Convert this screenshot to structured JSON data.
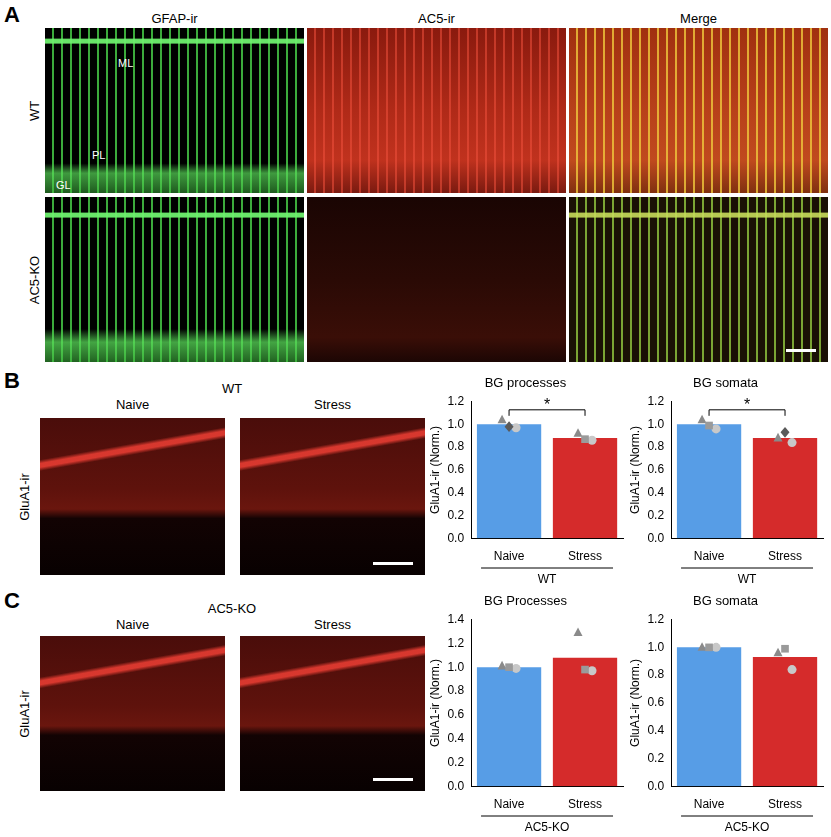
{
  "figure": {
    "panel_a": {
      "label": "A",
      "columns": [
        "GFAP-ir",
        "AC5-ir",
        "Merge"
      ],
      "rows": [
        "WT",
        "AC5-KO"
      ],
      "layer_labels": [
        "ML",
        "PL",
        "GL"
      ]
    },
    "panel_b": {
      "label": "B",
      "genotype": "WT",
      "conditions": [
        "Naive",
        "Stress"
      ],
      "stain": "GluA1-ir"
    },
    "panel_c": {
      "label": "C",
      "genotype": "AC5-KO",
      "conditions": [
        "Naive",
        "Stress"
      ],
      "stain": "GluA1-ir"
    }
  },
  "chart_data": [
    {
      "type": "bar",
      "title": "BG processes",
      "categories": [
        "Naive",
        "Stress"
      ],
      "group_label": "WT",
      "y_label": "GluA1-ir (Norm.)",
      "values": [
        1.0,
        0.88
      ],
      "colors": [
        "#579de6",
        "#d52b2b"
      ],
      "ylim": [
        0,
        1.2
      ],
      "yticks": [
        {
          "value": 0,
          "label": "0.0"
        },
        {
          "value": 0.2,
          "label": "0.2"
        },
        {
          "value": 0.4,
          "label": "0.4"
        },
        {
          "value": 0.6,
          "label": "0.6"
        },
        {
          "value": 0.8,
          "label": "0.8"
        },
        {
          "value": 1.0,
          "label": "1.0"
        },
        {
          "value": 1.2,
          "label": "1.2"
        }
      ],
      "grid": false,
      "points": [
        {
          "category": "Naive",
          "value": 1.04,
          "marker": "triangle",
          "color": "#8a8a8a"
        },
        {
          "category": "Naive",
          "value": 0.97,
          "marker": "circle",
          "color": "#c8c8c8"
        },
        {
          "category": "Naive",
          "value": 0.98,
          "marker": "diamond",
          "color": "#5a5a5a"
        },
        {
          "category": "Stress",
          "value": 0.92,
          "marker": "triangle",
          "color": "#8a8a8a"
        },
        {
          "category": "Stress",
          "value": 0.86,
          "marker": "circle",
          "color": "#c8c8c8"
        },
        {
          "category": "Stress",
          "value": 0.87,
          "marker": "square",
          "color": "#9a9a9a"
        }
      ],
      "significance": {
        "between": [
          "Naive",
          "Stress"
        ],
        "label": "*"
      }
    },
    {
      "type": "bar",
      "title": "BG somata",
      "categories": [
        "Naive",
        "Stress"
      ],
      "group_label": "WT",
      "y_label": "GluA1-ir (Norm.)",
      "values": [
        1.0,
        0.88
      ],
      "colors": [
        "#579de6",
        "#d52b2b"
      ],
      "ylim": [
        0,
        1.2
      ],
      "yticks": [
        {
          "value": 0,
          "label": "0.0"
        },
        {
          "value": 0.2,
          "label": "0.2"
        },
        {
          "value": 0.4,
          "label": "0.4"
        },
        {
          "value": 0.6,
          "label": "0.6"
        },
        {
          "value": 0.8,
          "label": "0.8"
        },
        {
          "value": 1.0,
          "label": "1.0"
        },
        {
          "value": 1.2,
          "label": "1.2"
        }
      ],
      "grid": false,
      "points": [
        {
          "category": "Naive",
          "value": 1.04,
          "marker": "triangle",
          "color": "#8a8a8a"
        },
        {
          "category": "Naive",
          "value": 0.96,
          "marker": "circle",
          "color": "#c8c8c8"
        },
        {
          "category": "Naive",
          "value": 0.99,
          "marker": "square",
          "color": "#9a9a9a"
        },
        {
          "category": "Stress",
          "value": 0.88,
          "marker": "triangle",
          "color": "#8a8a8a"
        },
        {
          "category": "Stress",
          "value": 0.84,
          "marker": "circle",
          "color": "#c8c8c8"
        },
        {
          "category": "Stress",
          "value": 0.93,
          "marker": "diamond",
          "color": "#5a5a5a"
        }
      ],
      "significance": {
        "between": [
          "Naive",
          "Stress"
        ],
        "label": "*"
      }
    },
    {
      "type": "bar",
      "title": "BG Processes",
      "categories": [
        "Naive",
        "Stress"
      ],
      "group_label": "AC5-KO",
      "y_label": "GluA1-ir (Norm.)",
      "values": [
        1.0,
        1.08
      ],
      "colors": [
        "#579de6",
        "#d52b2b"
      ],
      "ylim": [
        0,
        1.4
      ],
      "yticks": [
        {
          "value": 0,
          "label": "0.0"
        },
        {
          "value": 0.2,
          "label": "0.2"
        },
        {
          "value": 0.4,
          "label": "0.4"
        },
        {
          "value": 0.6,
          "label": "0.6"
        },
        {
          "value": 0.8,
          "label": "0.8"
        },
        {
          "value": 1.0,
          "label": "1.0"
        },
        {
          "value": 1.2,
          "label": "1.2"
        },
        {
          "value": 1.4,
          "label": "1.4"
        }
      ],
      "grid": false,
      "points": [
        {
          "category": "Naive",
          "value": 1.01,
          "marker": "triangle",
          "color": "#8a8a8a"
        },
        {
          "category": "Naive",
          "value": 0.99,
          "marker": "circle",
          "color": "#c8c8c8"
        },
        {
          "category": "Naive",
          "value": 1.0,
          "marker": "square",
          "color": "#9a9a9a"
        },
        {
          "category": "Stress",
          "value": 1.29,
          "marker": "triangle",
          "color": "#8a8a8a"
        },
        {
          "category": "Stress",
          "value": 0.97,
          "marker": "circle",
          "color": "#c8c8c8"
        },
        {
          "category": "Stress",
          "value": 0.98,
          "marker": "square",
          "color": "#9a9a9a"
        }
      ]
    },
    {
      "type": "bar",
      "title": "BG somata",
      "categories": [
        "Naive",
        "Stress"
      ],
      "group_label": "AC5-KO",
      "y_label": "GluA1-ir (Norm.)",
      "values": [
        1.0,
        0.93
      ],
      "colors": [
        "#579de6",
        "#d52b2b"
      ],
      "ylim": [
        0,
        1.2
      ],
      "yticks": [
        {
          "value": 0,
          "label": "0.0"
        },
        {
          "value": 0.2,
          "label": "0.2"
        },
        {
          "value": 0.4,
          "label": "0.4"
        },
        {
          "value": 0.6,
          "label": "0.6"
        },
        {
          "value": 0.8,
          "label": "0.8"
        },
        {
          "value": 1.0,
          "label": "1.0"
        },
        {
          "value": 1.2,
          "label": "1.2"
        }
      ],
      "grid": false,
      "points": [
        {
          "category": "Naive",
          "value": 1.0,
          "marker": "triangle",
          "color": "#8a8a8a"
        },
        {
          "category": "Naive",
          "value": 1.0,
          "marker": "circle",
          "color": "#c8c8c8"
        },
        {
          "category": "Naive",
          "value": 1.0,
          "marker": "square",
          "color": "#9a9a9a"
        },
        {
          "category": "Stress",
          "value": 0.96,
          "marker": "triangle",
          "color": "#8a8a8a"
        },
        {
          "category": "Stress",
          "value": 0.84,
          "marker": "circle",
          "color": "#c8c8c8"
        },
        {
          "category": "Stress",
          "value": 0.99,
          "marker": "square",
          "color": "#9a9a9a"
        }
      ]
    }
  ]
}
